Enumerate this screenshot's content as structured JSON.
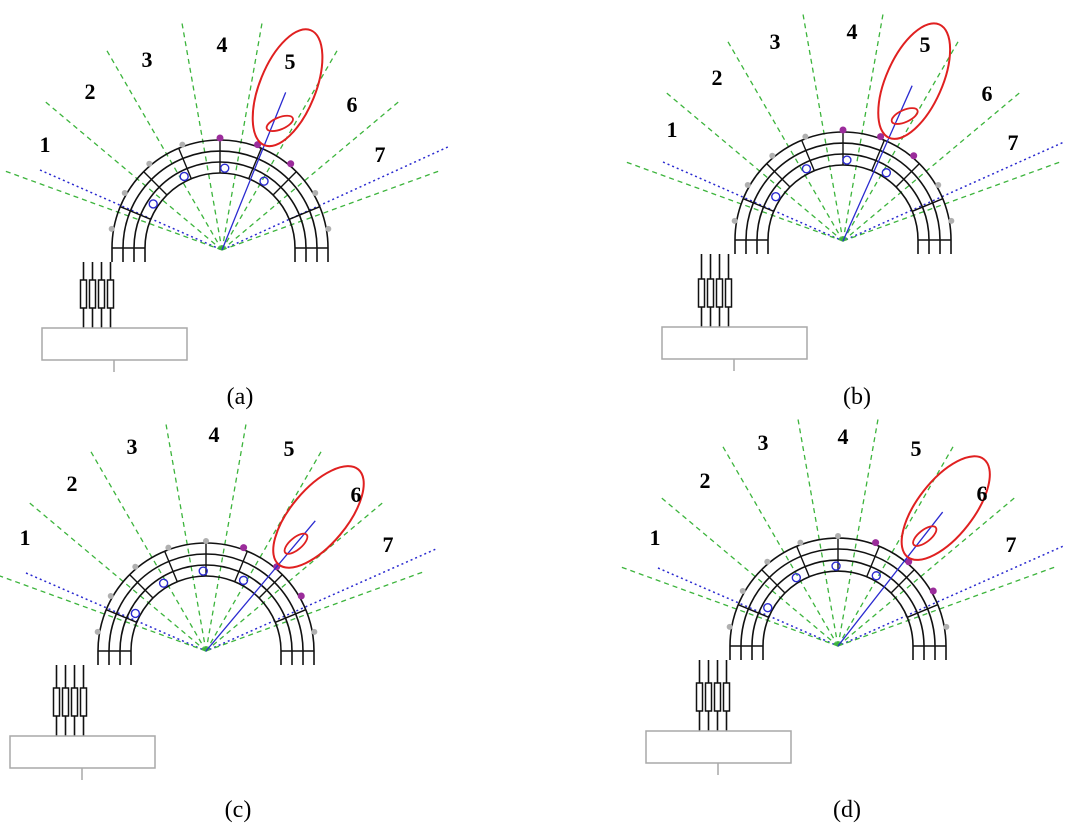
{
  "panels": [
    {
      "id": "a",
      "caption": "(a)",
      "sector_labels": [
        "1",
        "2",
        "3",
        "4",
        "5",
        "6",
        "7"
      ],
      "steer_deg": 22
    },
    {
      "id": "b",
      "caption": "(b)",
      "sector_labels": [
        "1",
        "2",
        "3",
        "4",
        "5",
        "6",
        "7"
      ],
      "steer_deg": 24
    },
    {
      "id": "c",
      "caption": "(c)",
      "sector_labels": [
        "1",
        "2",
        "3",
        "4",
        "5",
        "6",
        "7"
      ],
      "steer_deg": 40
    },
    {
      "id": "d",
      "caption": "(d)",
      "sector_labels": [
        "1",
        "2",
        "3",
        "4",
        "5",
        "6",
        "7"
      ],
      "steer_deg": 38
    }
  ],
  "colors": {
    "lines": "#111111",
    "sector_dividers": "#3cb43c",
    "horizon": "#2a2ad0",
    "beam_pattern": "#e02020",
    "steer_line": "#2a2ad0",
    "active_elements": "#9b2c9b",
    "inactive_elements": "#b0b0b0",
    "phase_nodes": "#2a2ad0",
    "box": "#a9a9a9"
  }
}
